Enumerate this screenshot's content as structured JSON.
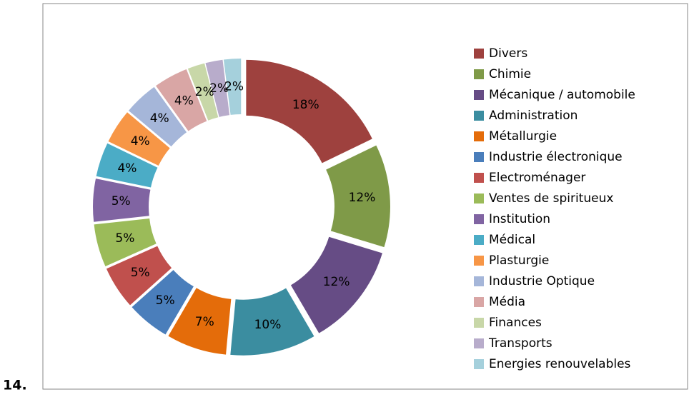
{
  "item_number": "14.",
  "chart_data": {
    "type": "donut",
    "categories": [
      "Divers",
      "Chimie",
      "Mécanique / automobile",
      "Administration",
      "Métallurgie",
      "Industrie électronique",
      "Electroménager",
      "Ventes de spiritueux",
      "Institution",
      "Médical",
      "Plasturgie",
      "Industrie Optique",
      "Média",
      "Finances",
      "Transports",
      "Energies renouvelables"
    ],
    "values": [
      18,
      12,
      12,
      10,
      7,
      5,
      5,
      5,
      5,
      4,
      4,
      4,
      4,
      2,
      2,
      2
    ],
    "value_labels": [
      "18%",
      "12%",
      "12%",
      "10%",
      "7%",
      "5%",
      "5%",
      "5%",
      "5%",
      "4%",
      "4%",
      "4%",
      "4%",
      "2%",
      "2%",
      "2%"
    ],
    "colors": [
      "#9E413E",
      "#7F9A48",
      "#664C85",
      "#3B8DA0",
      "#E46C0A",
      "#4A7EBB",
      "#C0504D",
      "#9BBB59",
      "#8064A2",
      "#4BACC6",
      "#F79646",
      "#A5B6D9",
      "#D9A6A5",
      "#C8D7A8",
      "#B8ACCB",
      "#A5D0DC"
    ],
    "legend": "right"
  }
}
